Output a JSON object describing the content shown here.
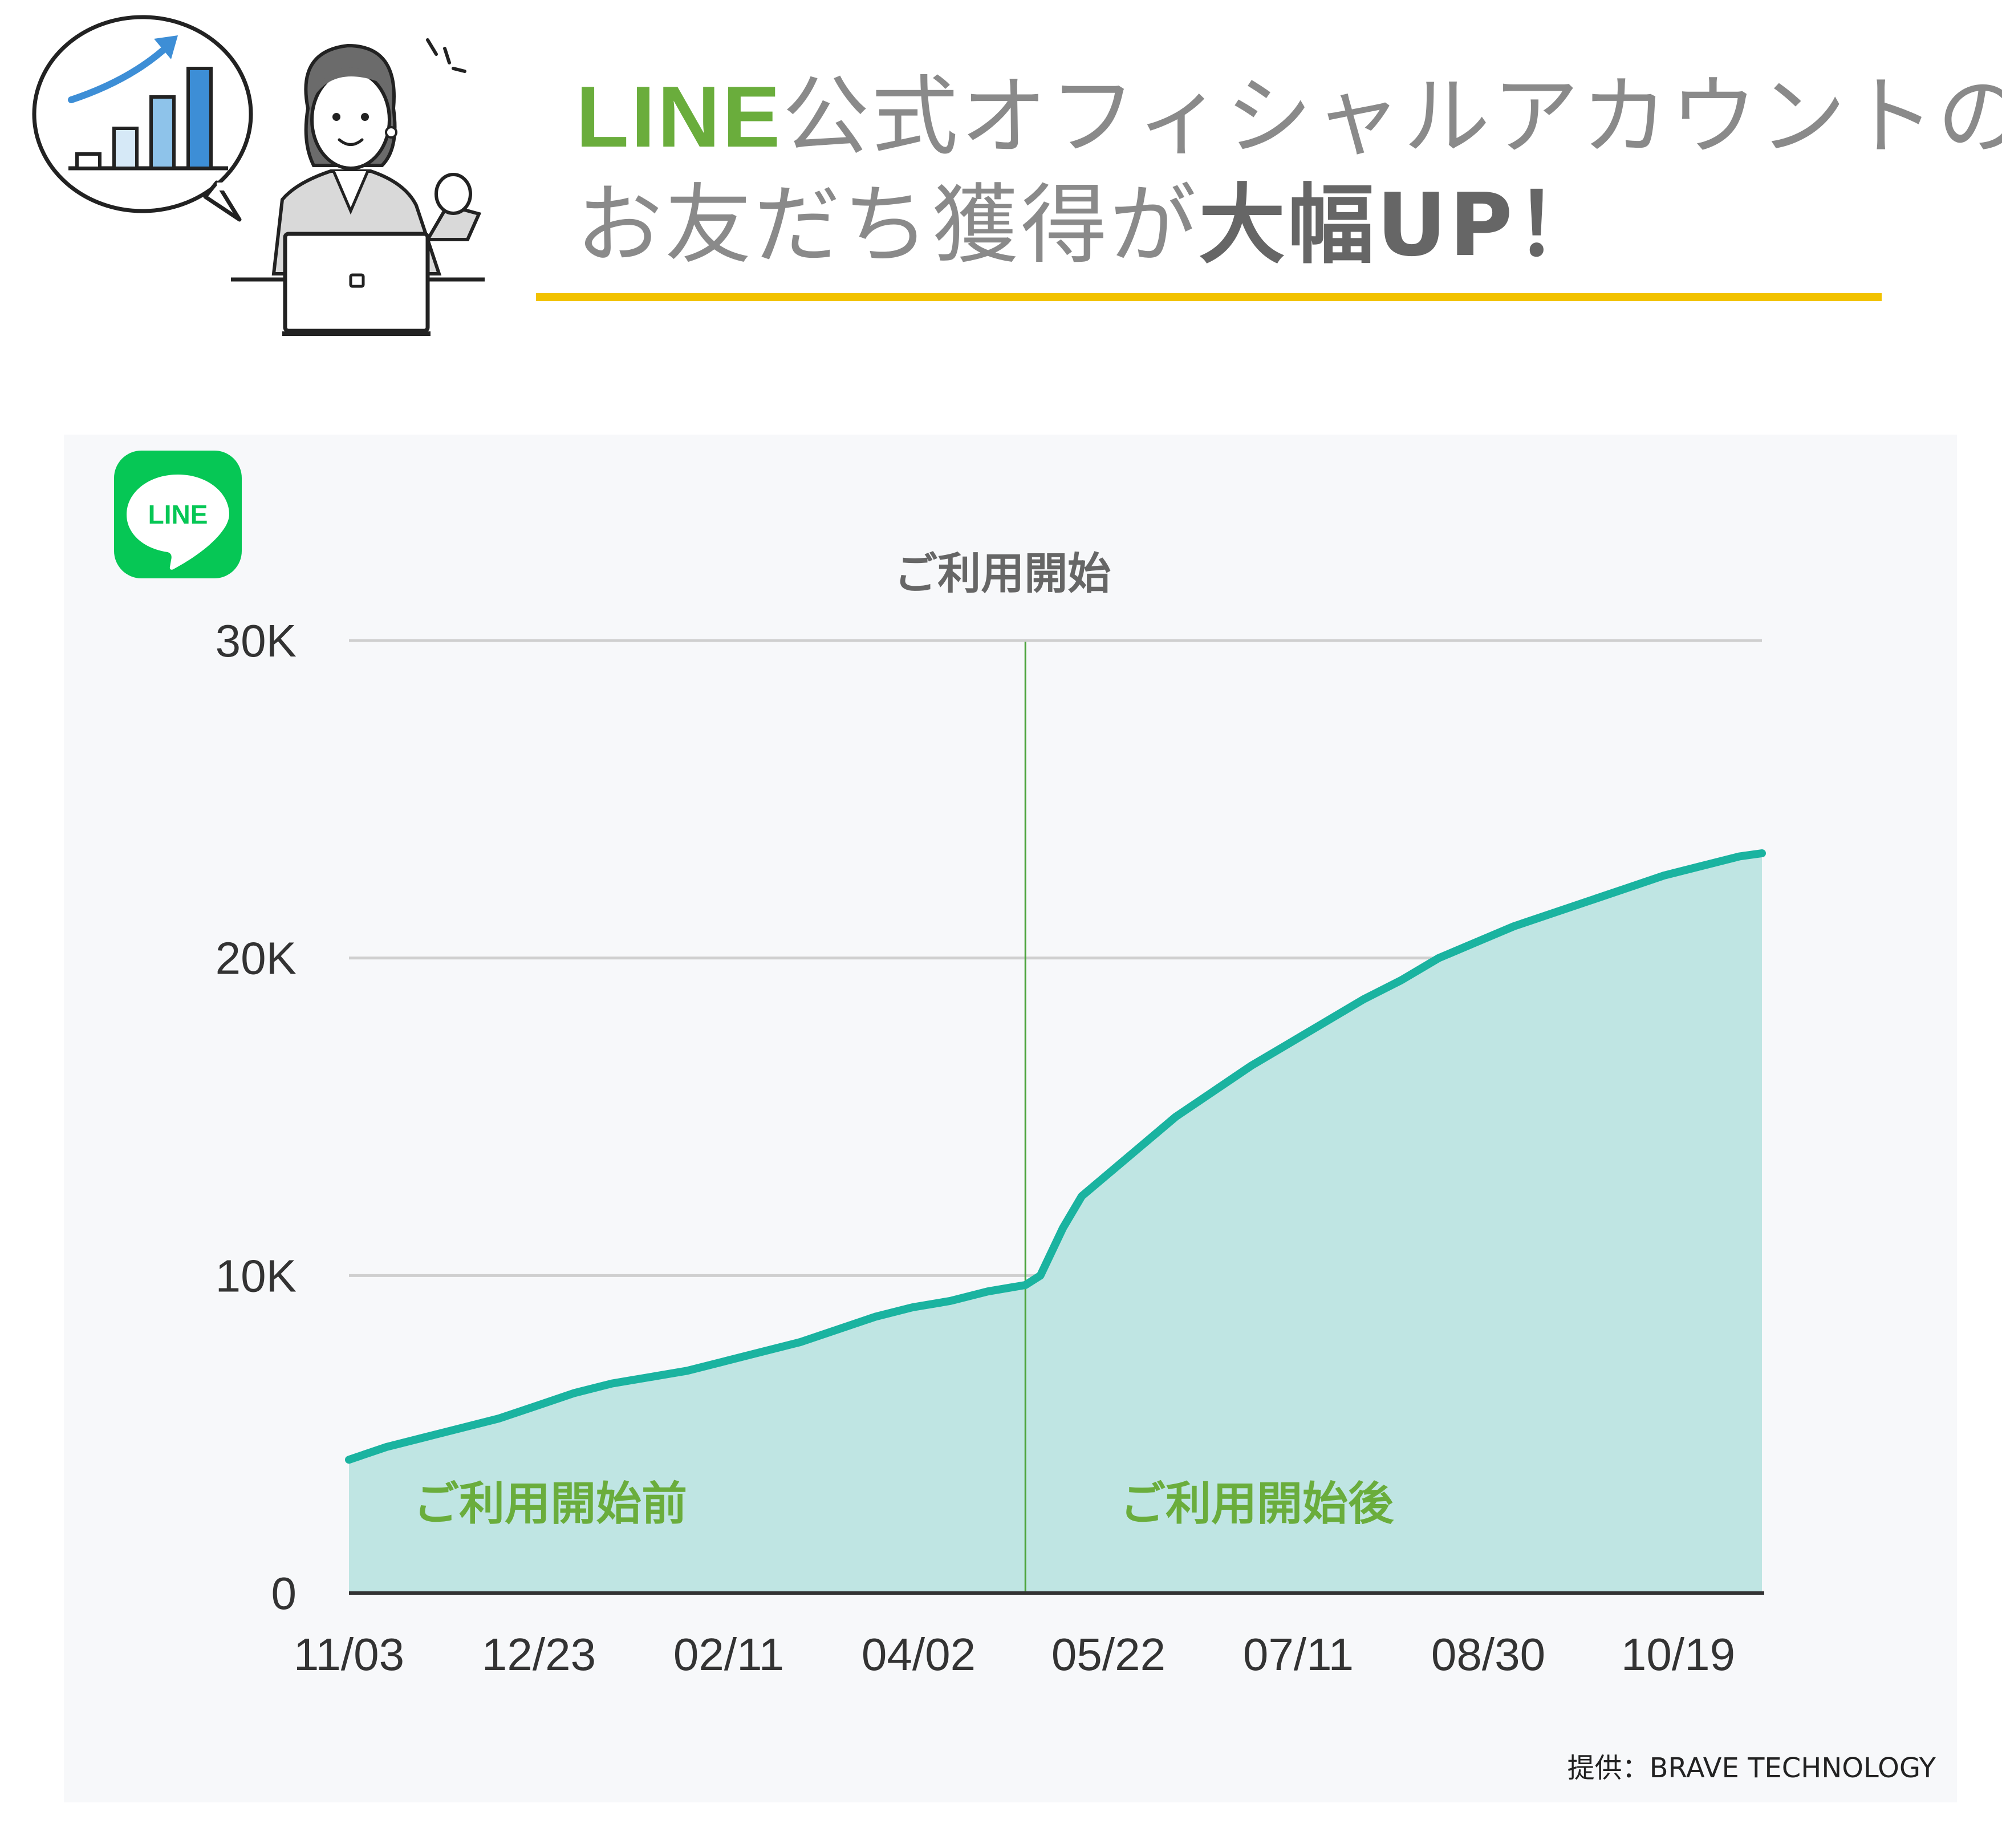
{
  "header": {
    "title_line1_brand": "LINE",
    "title_line1_rest": "公式オフィシャルアカウントの",
    "title_line2_start": "お友だち獲得が",
    "title_line2_strong": "大幅UP",
    "title_line2_end": "！"
  },
  "logo": {
    "text": "LINE",
    "color": "#06c755"
  },
  "colors": {
    "accent_green": "#6aad3c",
    "underline": "#f2c200",
    "line": "#1ab3a0",
    "area": "#bfe5e3",
    "marker": "#4ca33c"
  },
  "chart_data": {
    "type": "area",
    "x_tick_labels": [
      "11/03",
      "12/23",
      "02/11",
      "04/02",
      "05/22",
      "07/11",
      "08/30",
      "10/19"
    ],
    "y_tick_labels": [
      "0",
      "10K",
      "20K",
      "30K"
    ],
    "ylim": [
      0,
      30000
    ],
    "day_range": [
      0,
      376
    ],
    "x_days": [
      0,
      10,
      20,
      30,
      40,
      50,
      60,
      70,
      80,
      90,
      100,
      110,
      120,
      130,
      140,
      150,
      160,
      170,
      180,
      184,
      190,
      195,
      200,
      210,
      220,
      230,
      240,
      250,
      260,
      270,
      280,
      290,
      300,
      310,
      320,
      330,
      340,
      350,
      360,
      370,
      376
    ],
    "values": [
      4200,
      4600,
      4900,
      5200,
      5500,
      5900,
      6300,
      6600,
      6800,
      7000,
      7300,
      7600,
      7900,
      8300,
      8700,
      9000,
      9200,
      9500,
      9700,
      10000,
      11500,
      12500,
      13000,
      14000,
      15000,
      15800,
      16600,
      17300,
      18000,
      18700,
      19300,
      20000,
      20500,
      21000,
      21400,
      21800,
      22200,
      22600,
      22900,
      23200,
      23300
    ],
    "marker": {
      "day": 180,
      "label": "ご利用開始"
    },
    "region_labels": [
      "ご利用開始前",
      "ご利用開始後"
    ]
  },
  "credit": "提供：BRAVE TECHNOLOGY"
}
